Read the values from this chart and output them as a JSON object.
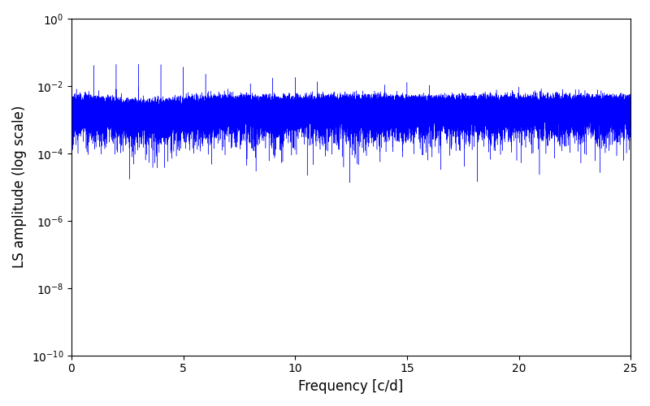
{
  "xlabel": "Frequency [c/d]",
  "ylabel": "LS amplitude (log scale)",
  "xlim": [
    0,
    25
  ],
  "ylim": [
    1e-10,
    1.0
  ],
  "line_color": "#0000ff",
  "background_color": "#ffffff",
  "figsize": [
    8.0,
    5.0
  ],
  "dpi": 100,
  "seed": 7
}
